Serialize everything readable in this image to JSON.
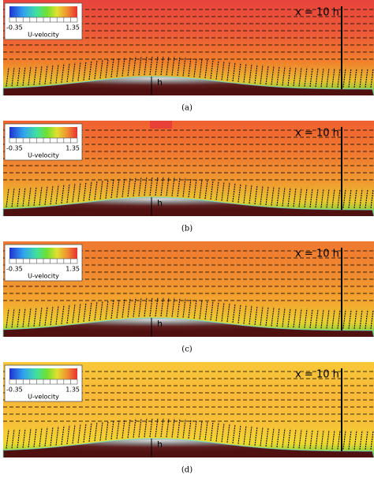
{
  "panels": [
    {
      "colorbar": {
        "min": -0.35,
        "max": 1.35,
        "label": "U-velocity"
      },
      "annotation": "x = 10 h",
      "height_label": "h",
      "caption": "(a)"
    },
    {
      "colorbar": {
        "min": -0.35,
        "max": 1.35,
        "label": "U-velocity"
      },
      "annotation": "x = 10 h",
      "height_label": "h",
      "caption": "(b)"
    },
    {
      "colorbar": {
        "min": -0.35,
        "max": 1.35,
        "label": "U-velocity"
      },
      "annotation": "x = 10 h",
      "height_label": "h",
      "caption": "(c)"
    },
    {
      "colorbar": {
        "min": -0.35,
        "max": 1.35,
        "label": "U-velocity"
      },
      "annotation": "x = 10 h",
      "height_label": "h",
      "caption": "(d)"
    }
  ]
}
